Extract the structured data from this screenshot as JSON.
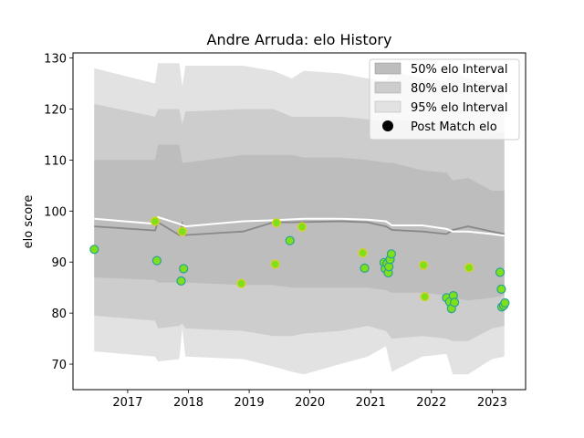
{
  "chart_data": {
    "type": "line",
    "title": "Andre Arruda: elo History",
    "xlabel": "",
    "ylabel": "elo score",
    "xlim": [
      2016.1,
      2023.55
    ],
    "ylim": [
      65.0,
      131.0
    ],
    "x_ticks": [
      2017,
      2018,
      2019,
      2020,
      2021,
      2022,
      2023
    ],
    "y_ticks": [
      70,
      80,
      90,
      100,
      110,
      120,
      130
    ],
    "grid": false,
    "legend_position": "top-right",
    "colors": {
      "band_95": "#e2e2e2",
      "band_80": "#cdcdcd",
      "band_50": "#bdbdbd",
      "median_line": "#888888",
      "mean_line": "#ffffff",
      "marker_fill": "#7ee01a",
      "marker_edge_a": "#2aa198",
      "marker_edge_b": "#e0d020"
    },
    "legend": [
      {
        "label": "50% elo Interval",
        "kind": "band_50"
      },
      {
        "label": "80% elo Interval",
        "kind": "band_80"
      },
      {
        "label": "95% elo Interval",
        "kind": "band_95"
      },
      {
        "label": "Post Match elo",
        "kind": "marker"
      }
    ],
    "series": [
      {
        "kind": "band_95",
        "x": [
          2016.45,
          2017.45,
          2017.5,
          2017.85,
          2017.9,
          2017.95,
          2018.9,
          2019.4,
          2019.7,
          2019.9,
          2020.5,
          2020.95,
          2021.25,
          2021.35,
          2021.85,
          2022.25,
          2022.35,
          2022.6,
          2023.0,
          2023.2
        ],
        "lower": [
          72.5,
          71.5,
          70.5,
          71.0,
          77.0,
          71.5,
          71.0,
          69.5,
          68.5,
          68.0,
          70.0,
          71.5,
          73.5,
          68.5,
          71.5,
          72.0,
          68.0,
          68.0,
          71.0,
          71.5
        ],
        "upper": [
          128.0,
          125.0,
          129.0,
          129.0,
          124.5,
          128.5,
          128.5,
          127.5,
          126.0,
          127.5,
          127.0,
          126.0,
          125.5,
          127.5,
          126.0,
          125.5,
          127.5,
          126.0,
          125.0,
          124.5
        ]
      },
      {
        "kind": "band_80",
        "x": [
          2016.45,
          2017.45,
          2017.5,
          2017.85,
          2017.9,
          2017.95,
          2018.9,
          2019.4,
          2019.7,
          2019.9,
          2020.5,
          2020.95,
          2021.25,
          2021.35,
          2021.85,
          2022.25,
          2022.35,
          2022.6,
          2023.0,
          2023.2
        ],
        "lower": [
          79.5,
          78.5,
          77.0,
          77.5,
          78.0,
          77.0,
          76.5,
          75.5,
          75.5,
          76.0,
          76.5,
          77.5,
          76.5,
          75.0,
          75.5,
          75.0,
          74.5,
          74.5,
          77.0,
          77.5
        ],
        "upper": [
          121.0,
          118.5,
          120.0,
          120.0,
          117.0,
          119.5,
          120.0,
          120.0,
          118.5,
          118.5,
          118.5,
          118.0,
          117.5,
          118.0,
          117.5,
          117.0,
          117.5,
          117.0,
          115.5,
          115.5
        ]
      },
      {
        "kind": "band_50",
        "x": [
          2016.45,
          2017.45,
          2017.5,
          2017.85,
          2017.9,
          2017.95,
          2018.9,
          2019.4,
          2019.7,
          2019.9,
          2020.5,
          2020.95,
          2021.25,
          2021.35,
          2021.85,
          2022.25,
          2022.35,
          2022.6,
          2023.0,
          2023.2
        ],
        "lower": [
          87.0,
          86.5,
          86.0,
          86.0,
          86.5,
          86.0,
          85.5,
          85.5,
          85.0,
          85.0,
          85.0,
          85.0,
          84.5,
          84.0,
          84.0,
          83.5,
          83.0,
          82.5,
          83.0,
          83.5
        ],
        "upper": [
          110.0,
          110.0,
          113.0,
          113.0,
          109.5,
          109.5,
          111.0,
          111.0,
          111.0,
          110.5,
          110.5,
          110.0,
          109.5,
          109.5,
          108.0,
          107.5,
          106.0,
          106.5,
          104.0,
          104.0
        ]
      },
      {
        "kind": "median_line",
        "x": [
          2016.45,
          2017.45,
          2017.5,
          2017.85,
          2017.9,
          2017.95,
          2018.9,
          2019.4,
          2019.7,
          2020.5,
          2020.95,
          2021.25,
          2021.35,
          2021.85,
          2022.25,
          2022.35,
          2022.6,
          2023.0,
          2023.2
        ],
        "y": [
          97.0,
          96.2,
          97.8,
          95.3,
          97.5,
          95.3,
          96.0,
          97.8,
          97.8,
          98.0,
          97.8,
          97.0,
          96.3,
          96.0,
          95.5,
          96.3,
          97.0,
          96.0,
          95.5
        ]
      },
      {
        "kind": "mean_line",
        "x": [
          2016.45,
          2017.45,
          2017.5,
          2017.85,
          2017.95,
          2018.9,
          2019.4,
          2019.9,
          2020.5,
          2020.95,
          2021.25,
          2021.35,
          2021.85,
          2022.25,
          2022.35,
          2022.6,
          2023.0,
          2023.2
        ],
        "y": [
          98.5,
          97.5,
          98.8,
          97.5,
          97.0,
          98.0,
          98.2,
          98.5,
          98.5,
          98.3,
          98.0,
          97.2,
          97.2,
          96.5,
          96.0,
          96.0,
          95.5,
          95.2
        ]
      }
    ],
    "points": [
      {
        "x": 2016.45,
        "y": 92.5,
        "edge": "a"
      },
      {
        "x": 2017.45,
        "y": 98.0,
        "edge": "b"
      },
      {
        "x": 2017.48,
        "y": 90.3,
        "edge": "a"
      },
      {
        "x": 2017.88,
        "y": 86.3,
        "edge": "a"
      },
      {
        "x": 2017.9,
        "y": 96.0,
        "edge": "b"
      },
      {
        "x": 2017.92,
        "y": 88.7,
        "edge": "a"
      },
      {
        "x": 2018.87,
        "y": 85.8,
        "edge": "b"
      },
      {
        "x": 2019.43,
        "y": 89.6,
        "edge": "b"
      },
      {
        "x": 2019.45,
        "y": 97.7,
        "edge": "b"
      },
      {
        "x": 2019.67,
        "y": 94.2,
        "edge": "a"
      },
      {
        "x": 2019.87,
        "y": 96.9,
        "edge": "b"
      },
      {
        "x": 2020.87,
        "y": 91.8,
        "edge": "b"
      },
      {
        "x": 2020.9,
        "y": 88.8,
        "edge": "a"
      },
      {
        "x": 2021.22,
        "y": 89.9,
        "edge": "a"
      },
      {
        "x": 2021.24,
        "y": 88.7,
        "edge": "a"
      },
      {
        "x": 2021.27,
        "y": 89.7,
        "edge": "a"
      },
      {
        "x": 2021.29,
        "y": 87.9,
        "edge": "a"
      },
      {
        "x": 2021.3,
        "y": 89.1,
        "edge": "a"
      },
      {
        "x": 2021.32,
        "y": 90.5,
        "edge": "a"
      },
      {
        "x": 2021.34,
        "y": 91.6,
        "edge": "a"
      },
      {
        "x": 2021.87,
        "y": 89.4,
        "edge": "b"
      },
      {
        "x": 2021.89,
        "y": 83.2,
        "edge": "b"
      },
      {
        "x": 2022.25,
        "y": 83.0,
        "edge": "a"
      },
      {
        "x": 2022.3,
        "y": 82.2,
        "edge": "a"
      },
      {
        "x": 2022.33,
        "y": 80.9,
        "edge": "a"
      },
      {
        "x": 2022.36,
        "y": 83.4,
        "edge": "a"
      },
      {
        "x": 2022.38,
        "y": 82.1,
        "edge": "a"
      },
      {
        "x": 2022.62,
        "y": 88.9,
        "edge": "b"
      },
      {
        "x": 2023.13,
        "y": 88.0,
        "edge": "a"
      },
      {
        "x": 2023.15,
        "y": 84.7,
        "edge": "a"
      },
      {
        "x": 2023.16,
        "y": 81.2,
        "edge": "a"
      },
      {
        "x": 2023.19,
        "y": 81.5,
        "edge": "a"
      },
      {
        "x": 2023.21,
        "y": 82.0,
        "edge": "a"
      }
    ]
  }
}
